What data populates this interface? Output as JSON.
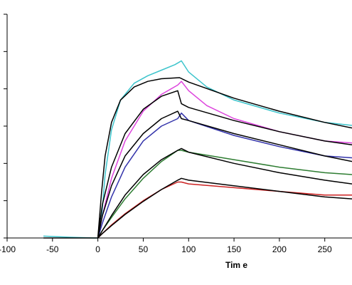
{
  "chart_data": {
    "type": "line",
    "title": "",
    "xlabel": "Tim e",
    "ylabel": "",
    "xlim": [
      -100,
      280
    ],
    "ylim": [
      0,
      6
    ],
    "x_ticks": [
      -100,
      -50,
      0,
      50,
      100,
      150,
      200,
      250
    ],
    "y_ticks": [
      0,
      1,
      2,
      3,
      4,
      5,
      6
    ],
    "grid": false,
    "legend": "none",
    "series": [
      {
        "color": "#3cc4cc",
        "x": [
          -60,
          -30,
          -5,
          0,
          4,
          8,
          15,
          25,
          40,
          55,
          70,
          85,
          92,
          100,
          120,
          150,
          200,
          250,
          280
        ],
        "y": [
          0.05,
          0.02,
          0.0,
          0.0,
          0.5,
          1.7,
          2.9,
          3.7,
          4.15,
          4.35,
          4.5,
          4.65,
          4.75,
          4.45,
          4.05,
          3.7,
          3.35,
          3.1,
          3.02
        ]
      },
      {
        "color": "#000000",
        "x": [
          -60,
          -30,
          -5,
          0,
          4,
          8,
          15,
          25,
          40,
          55,
          70,
          90,
          100,
          150,
          200,
          250,
          280
        ],
        "y": [
          0.0,
          0.0,
          0.0,
          0.0,
          1.2,
          2.2,
          3.1,
          3.7,
          4.05,
          4.2,
          4.27,
          4.3,
          4.18,
          3.75,
          3.4,
          3.1,
          2.95
        ]
      },
      {
        "color": "#dd44dd",
        "x": [
          0,
          5,
          15,
          30,
          50,
          70,
          88,
          92,
          100,
          120,
          150,
          200,
          250,
          280
        ],
        "y": [
          0.0,
          0.6,
          1.6,
          2.6,
          3.4,
          3.85,
          4.1,
          4.2,
          3.95,
          3.55,
          3.2,
          2.85,
          2.6,
          2.55
        ]
      },
      {
        "color": "#000000",
        "x": [
          0,
          5,
          15,
          30,
          50,
          70,
          88,
          92,
          100,
          150,
          200,
          250,
          280
        ],
        "y": [
          0.0,
          0.9,
          1.9,
          2.8,
          3.45,
          3.8,
          3.95,
          3.6,
          3.5,
          3.15,
          2.85,
          2.6,
          2.5
        ]
      },
      {
        "color": "#3333aa",
        "x": [
          0,
          5,
          15,
          30,
          50,
          70,
          88,
          92,
          100,
          150,
          200,
          250,
          280
        ],
        "y": [
          0.0,
          0.4,
          1.1,
          1.9,
          2.6,
          3.0,
          3.2,
          3.35,
          3.15,
          2.75,
          2.45,
          2.2,
          2.15
        ]
      },
      {
        "color": "#000000",
        "x": [
          0,
          5,
          15,
          30,
          50,
          70,
          88,
          92,
          100,
          150,
          200,
          250,
          280
        ],
        "y": [
          0.0,
          0.6,
          1.4,
          2.2,
          2.8,
          3.2,
          3.4,
          3.2,
          3.15,
          2.8,
          2.5,
          2.2,
          2.05
        ]
      },
      {
        "color": "#2e7d32",
        "x": [
          0,
          5,
          15,
          30,
          50,
          70,
          88,
          92,
          100,
          150,
          200,
          250,
          280
        ],
        "y": [
          0.0,
          0.2,
          0.55,
          1.05,
          1.6,
          2.05,
          2.35,
          2.35,
          2.3,
          2.1,
          1.9,
          1.75,
          1.7
        ]
      },
      {
        "color": "#000000",
        "x": [
          0,
          5,
          15,
          30,
          50,
          70,
          88,
          92,
          100,
          150,
          200,
          250,
          280
        ],
        "y": [
          0.0,
          0.2,
          0.6,
          1.15,
          1.7,
          2.1,
          2.35,
          2.4,
          2.3,
          2.0,
          1.75,
          1.55,
          1.45
        ]
      },
      {
        "color": "#cc2222",
        "x": [
          0,
          5,
          15,
          30,
          50,
          70,
          88,
          92,
          100,
          150,
          200,
          250,
          280
        ],
        "y": [
          0.0,
          0.12,
          0.35,
          0.65,
          1.0,
          1.3,
          1.5,
          1.5,
          1.45,
          1.35,
          1.25,
          1.15,
          1.15
        ]
      },
      {
        "color": "#000000",
        "x": [
          0,
          5,
          15,
          30,
          50,
          70,
          88,
          92,
          100,
          150,
          200,
          250,
          280
        ],
        "y": [
          0.0,
          0.12,
          0.33,
          0.63,
          0.98,
          1.3,
          1.55,
          1.6,
          1.55,
          1.4,
          1.25,
          1.1,
          1.05
        ]
      }
    ]
  }
}
